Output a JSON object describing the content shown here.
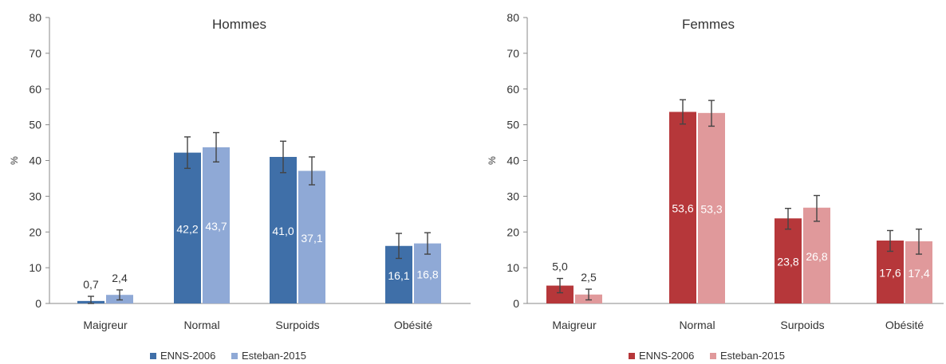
{
  "chart_data": [
    {
      "type": "bar",
      "title": "Hommes",
      "ylabel": "%",
      "ylim": [
        0,
        80
      ],
      "yticks": [
        0,
        10,
        20,
        30,
        40,
        50,
        60,
        70,
        80
      ],
      "ytick_labels": [
        "0",
        "10",
        "20",
        "30",
        "40",
        "50",
        "60",
        "70",
        "80"
      ],
      "categories": [
        "Maigreur",
        "Normal",
        "Surpoids",
        "Obésité"
      ],
      "grid": false,
      "legend_position": "bottom",
      "series": [
        {
          "name": "ENNS-2006",
          "color": "#3f6fa8",
          "values": [
            0.7,
            42.2,
            41.0,
            16.1
          ],
          "labels": [
            "0,7",
            "42,2",
            "41,0",
            "16,1"
          ],
          "error": [
            [
              0,
              2.0
            ],
            [
              37.8,
              46.6
            ],
            [
              36.6,
              45.4
            ],
            [
              12.6,
              19.6
            ]
          ]
        },
        {
          "name": "Esteban-2015",
          "color": "#8fa9d6",
          "values": [
            2.4,
            43.7,
            37.1,
            16.8
          ],
          "labels": [
            "2,4",
            "43,7",
            "37,1",
            "16,8"
          ],
          "error": [
            [
              1.0,
              3.8
            ],
            [
              39.6,
              47.8
            ],
            [
              33.2,
              41.0
            ],
            [
              13.8,
              19.8
            ]
          ]
        }
      ]
    },
    {
      "type": "bar",
      "title": "Femmes",
      "ylabel": "%",
      "ylim": [
        0,
        80
      ],
      "yticks": [
        0,
        10,
        20,
        30,
        40,
        50,
        60,
        70,
        80
      ],
      "ytick_labels": [
        "0",
        "10",
        "20",
        "30",
        "40",
        "50",
        "60",
        "70",
        "80"
      ],
      "categories": [
        "Maigreur",
        "Normal",
        "Surpoids",
        "Obésité"
      ],
      "grid": false,
      "legend_position": "bottom",
      "series": [
        {
          "name": "ENNS-2006",
          "color": "#b6373a",
          "values": [
            5.0,
            53.6,
            23.8,
            17.6
          ],
          "labels": [
            "5,0",
            "53,6",
            "23,8",
            "17,6"
          ],
          "error": [
            [
              3.0,
              7.0
            ],
            [
              50.2,
              57.0
            ],
            [
              20.8,
              26.6
            ],
            [
              14.6,
              20.4
            ]
          ]
        },
        {
          "name": "Esteban-2015",
          "color": "#e0999b",
          "values": [
            2.5,
            53.3,
            26.8,
            17.4
          ],
          "labels": [
            "2,5",
            "53,3",
            "26,8",
            "17,4"
          ],
          "error": [
            [
              1.0,
              4.0
            ],
            [
              49.6,
              56.8
            ],
            [
              23.0,
              30.2
            ],
            [
              13.8,
              20.8
            ]
          ]
        }
      ]
    }
  ]
}
